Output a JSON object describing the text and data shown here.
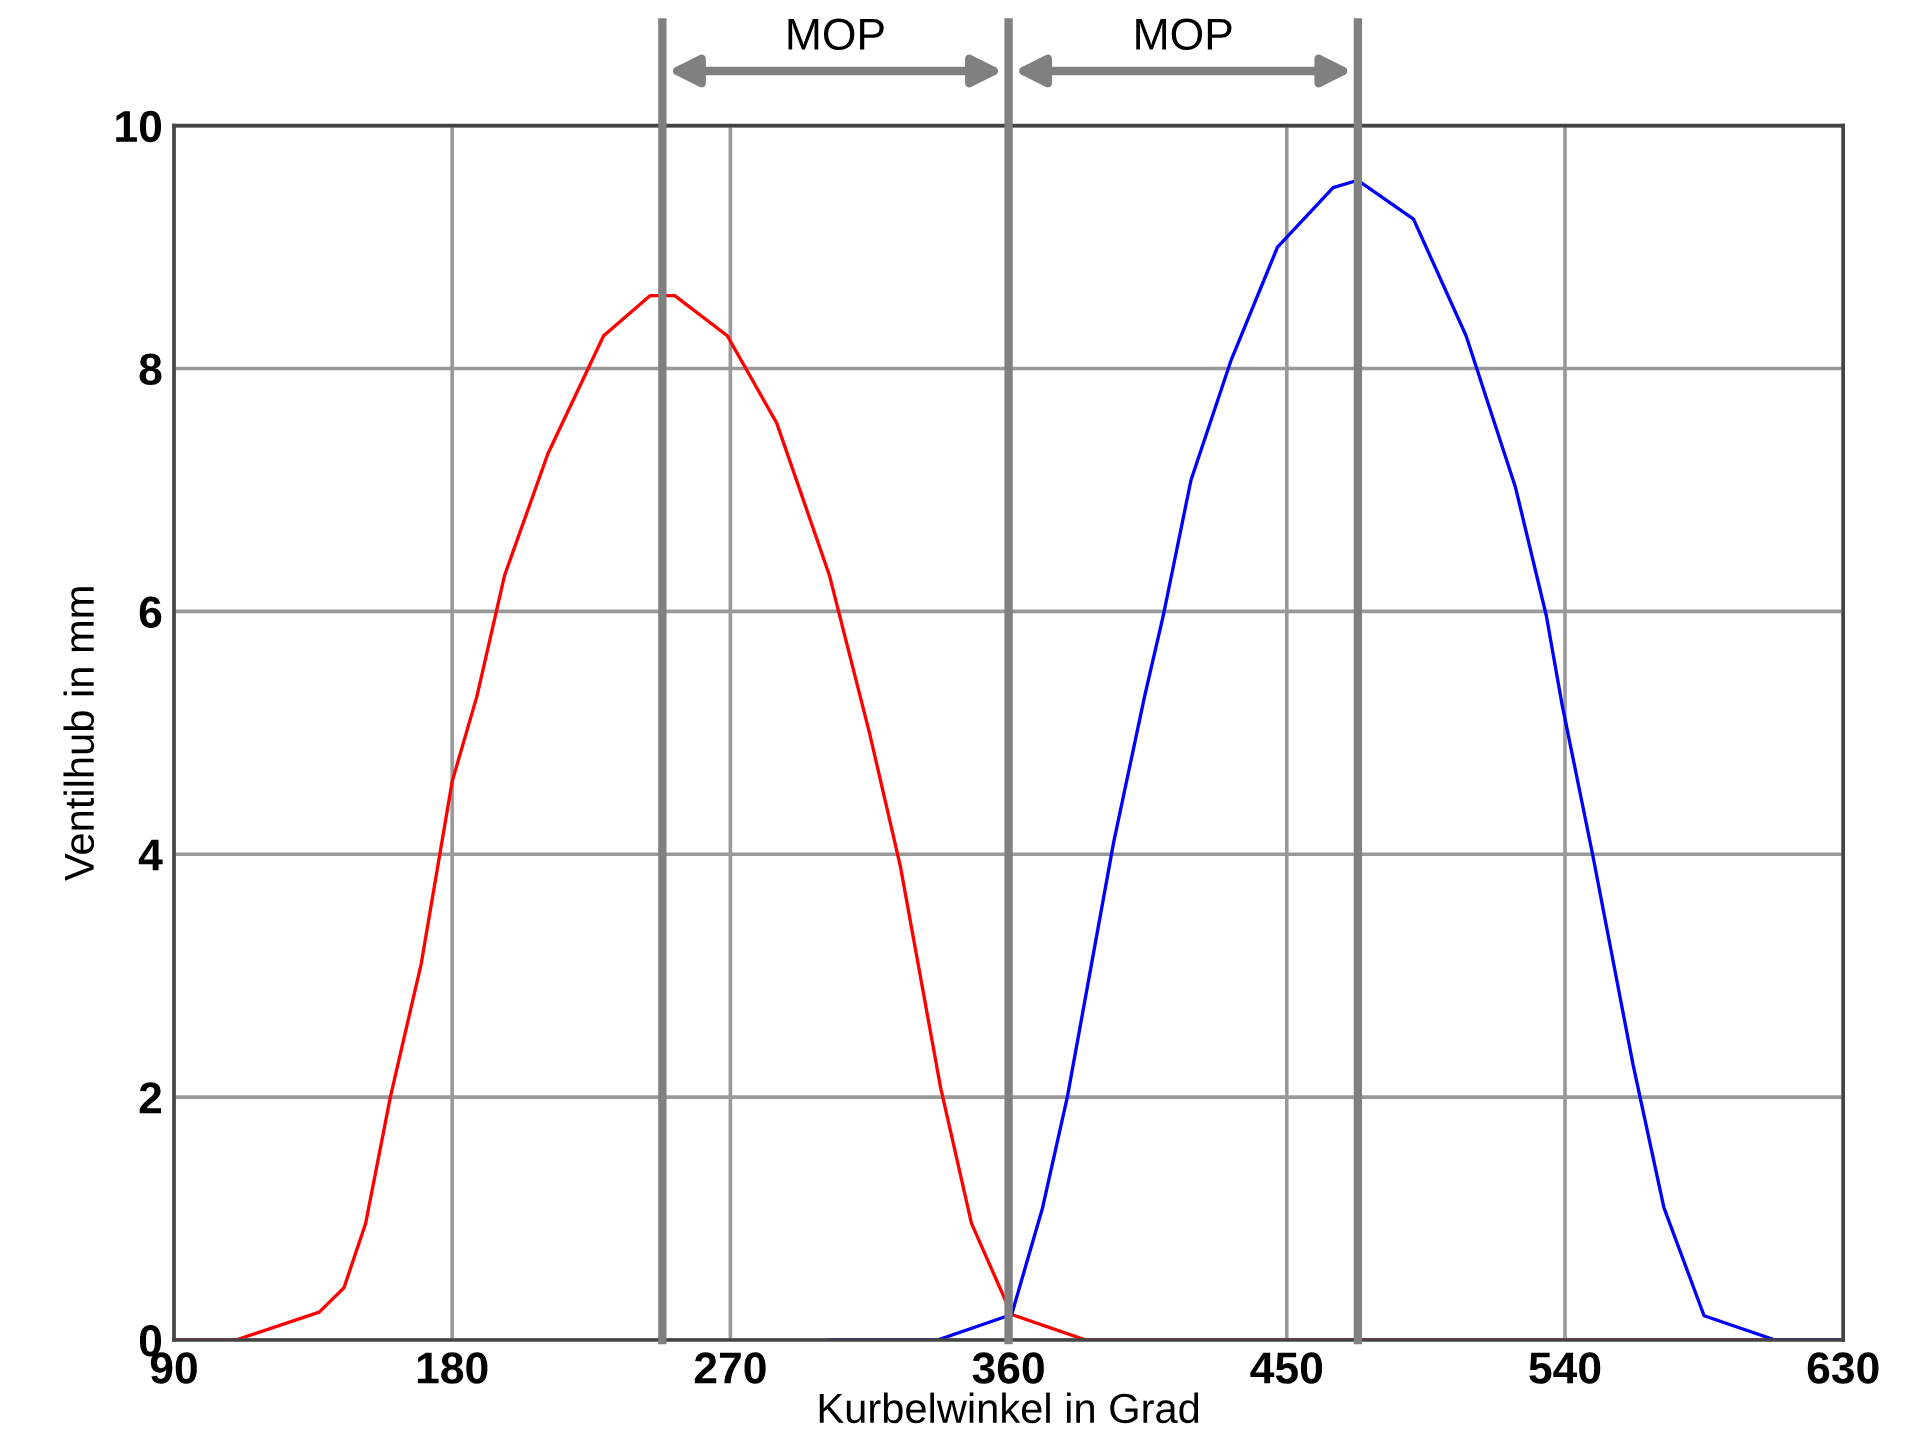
{
  "chart_data": {
    "type": "line",
    "xlabel": "Kurbelwinkel in Grad",
    "ylabel": "Ventilhub in mm",
    "xlim": [
      90,
      630
    ],
    "xticks": [
      90,
      180,
      270,
      360,
      450,
      540,
      630
    ],
    "ylim": [
      0,
      10
    ],
    "yticks": [
      0,
      2,
      4,
      6,
      8,
      10
    ],
    "grid": true,
    "legend": false,
    "series": [
      {
        "color": "#ff0000",
        "x": [
          90,
          110,
          137,
          145,
          152,
          160,
          170,
          180,
          188,
          197,
          211,
          229,
          244,
          252,
          269,
          285,
          302,
          315,
          325,
          338,
          348,
          361,
          385,
          630
        ],
        "values": [
          0,
          0,
          0.23,
          0.43,
          0.96,
          2.0,
          3.1,
          4.6,
          5.3,
          6.3,
          7.3,
          8.27,
          8.6,
          8.6,
          8.27,
          7.55,
          6.3,
          5.0,
          3.9,
          2.08,
          0.96,
          0.21,
          0,
          0
        ]
      },
      {
        "color": "#0000ff",
        "x": [
          302,
          337,
          361,
          371,
          379,
          388,
          394,
          404,
          410,
          419,
          432,
          447,
          465,
          473,
          491,
          508,
          524,
          534,
          539,
          549,
          562,
          572,
          585,
          608,
          630
        ],
        "values": [
          0,
          0,
          0.21,
          1.09,
          2.0,
          3.26,
          4.1,
          5.3,
          5.96,
          7.08,
          8.07,
          9.0,
          9.49,
          9.55,
          9.23,
          8.27,
          7.02,
          5.96,
          5.24,
          3.99,
          2.27,
          1.09,
          0.2,
          0,
          0
        ]
      }
    ],
    "ref_lines": [
      {
        "axis": "x",
        "value": 248,
        "color": "#808080"
      },
      {
        "axis": "x",
        "value": 360,
        "color": "#808080"
      },
      {
        "axis": "x",
        "value": 473,
        "color": "#808080"
      }
    ],
    "annotations": [
      "MOP",
      "MOP"
    ]
  }
}
